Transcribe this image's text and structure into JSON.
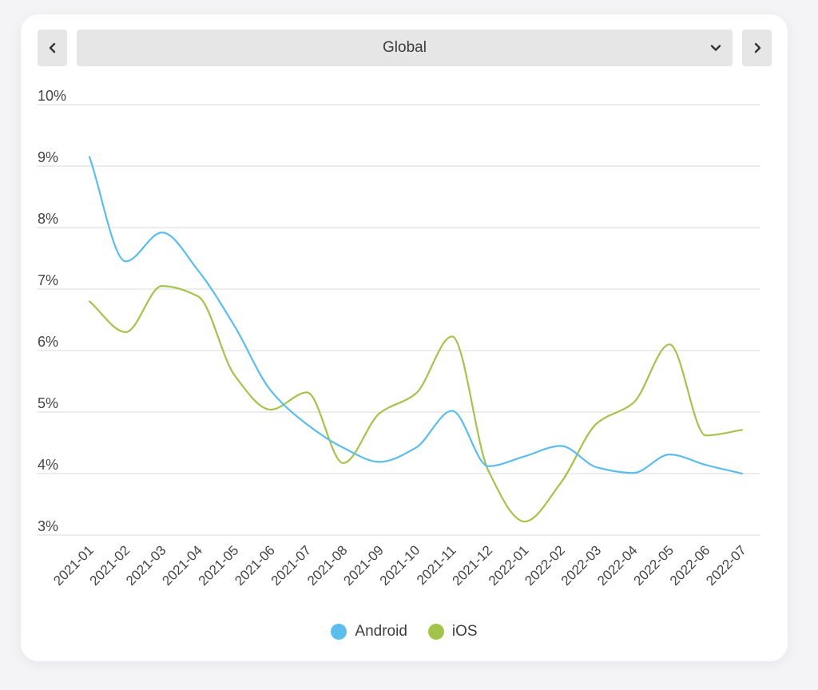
{
  "header": {
    "prev_icon": "chevron-left-icon",
    "next_icon": "chevron-right-icon",
    "dropdown_icon": "chevron-down-icon",
    "region": "Global"
  },
  "colors": {
    "Android": "#5bbdec",
    "iOS": "#a3c44a",
    "grid": "#e2e2e2",
    "text": "#444444"
  },
  "chart_data": {
    "type": "line",
    "title": "",
    "xlabel": "",
    "ylabel": "",
    "ylim": [
      3,
      10
    ],
    "yticks": [
      "10%",
      "9%",
      "8%",
      "7%",
      "6%",
      "5%",
      "4%",
      "3%"
    ],
    "ytick_values": [
      10,
      9,
      8,
      7,
      6,
      5,
      4,
      3
    ],
    "grid": true,
    "legend_position": "bottom",
    "categories": [
      "2021-01",
      "2021-02",
      "2021-03",
      "2021-04",
      "2021-05",
      "2021-06",
      "2021-07",
      "2021-08",
      "2021-09",
      "2021-10",
      "2021-11",
      "2021-12",
      "2022-01",
      "2022-02",
      "2022-03",
      "2022-04",
      "2022-05",
      "2022-06",
      "2022-07"
    ],
    "series": [
      {
        "name": "Android",
        "values": [
          9.15,
          7.45,
          7.92,
          7.3,
          6.4,
          5.35,
          4.8,
          4.42,
          4.19,
          4.42,
          5.02,
          4.12,
          4.28,
          4.45,
          4.1,
          4.01,
          4.31,
          4.14,
          4.0
        ]
      },
      {
        "name": "iOS",
        "values": [
          6.8,
          6.3,
          7.05,
          6.88,
          5.6,
          5.04,
          5.32,
          4.17,
          4.98,
          5.3,
          6.23,
          4.05,
          3.22,
          3.85,
          4.82,
          5.15,
          6.1,
          4.62,
          4.71
        ]
      }
    ]
  }
}
